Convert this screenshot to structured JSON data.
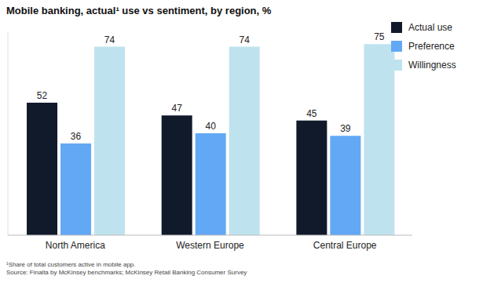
{
  "chart_data": {
    "type": "bar",
    "title": "Mobile banking, actual¹ use vs sentiment, by region, %",
    "categories": [
      "North America",
      "Western Europe",
      "Central Europe"
    ],
    "series": [
      {
        "name": "Actual use",
        "color": "#111a2b",
        "values": [
          52,
          47,
          45
        ]
      },
      {
        "name": "Preference",
        "color": "#62a8f4",
        "values": [
          36,
          40,
          39
        ]
      },
      {
        "name": "Willingness",
        "color": "#bfe3ee",
        "values": [
          74,
          74,
          75
        ]
      }
    ],
    "ylim": [
      0,
      80
    ],
    "grid": false,
    "legend": "right",
    "data_labels": true,
    "tick_labels": "x",
    "footnotes": [
      "¹Share of total customers active in mobile app.",
      "Source: Finalta by McKinsey benchmarks; McKinsey Retail Banking Consumer Survey"
    ]
  }
}
